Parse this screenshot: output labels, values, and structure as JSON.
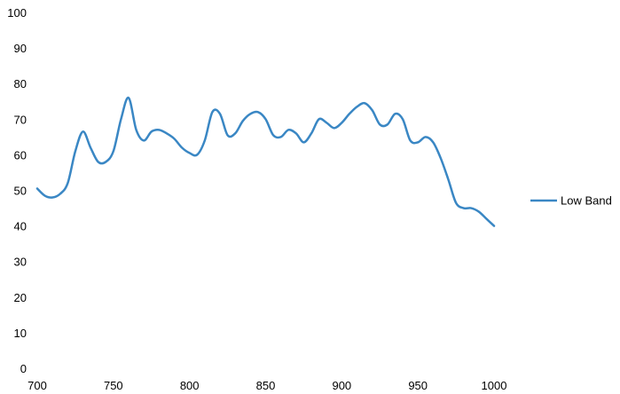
{
  "chart_data": {
    "type": "line",
    "title": "",
    "xlabel": "",
    "ylabel": "",
    "xlim": [
      700,
      1000
    ],
    "ylim": [
      0,
      100
    ],
    "xticks": [
      700,
      750,
      800,
      850,
      900,
      950,
      1000
    ],
    "yticks": [
      0,
      10,
      20,
      30,
      40,
      50,
      60,
      70,
      80,
      90,
      100
    ],
    "grid": false,
    "legend_position": "right",
    "series": [
      {
        "name": "Low Band",
        "color": "#3A87C4",
        "x": [
          700,
          705,
          710,
          715,
          720,
          725,
          730,
          735,
          740,
          745,
          750,
          755,
          760,
          765,
          770,
          775,
          780,
          785,
          790,
          795,
          800,
          805,
          810,
          815,
          820,
          825,
          830,
          835,
          840,
          845,
          850,
          855,
          860,
          865,
          870,
          875,
          880,
          885,
          890,
          895,
          900,
          905,
          910,
          915,
          920,
          925,
          930,
          935,
          940,
          945,
          950,
          955,
          960,
          965,
          970,
          975,
          980,
          985,
          990,
          995,
          1000
        ],
        "y": [
          50.5,
          48.5,
          48,
          49,
          52,
          61,
          66.5,
          62,
          58,
          58,
          61,
          70,
          76,
          67,
          64,
          66.5,
          67,
          66,
          64.5,
          62,
          60.5,
          60,
          64,
          72,
          71.5,
          65.5,
          66,
          69.5,
          71.5,
          72,
          70,
          65.5,
          65,
          67,
          66,
          63.5,
          66,
          70,
          69,
          67.5,
          69,
          71.5,
          73.5,
          74.5,
          72.5,
          68.5,
          68.5,
          71.5,
          70,
          64,
          63.5,
          65,
          63.5,
          59,
          53,
          46.5,
          45,
          45,
          44,
          42,
          40
        ]
      }
    ]
  }
}
